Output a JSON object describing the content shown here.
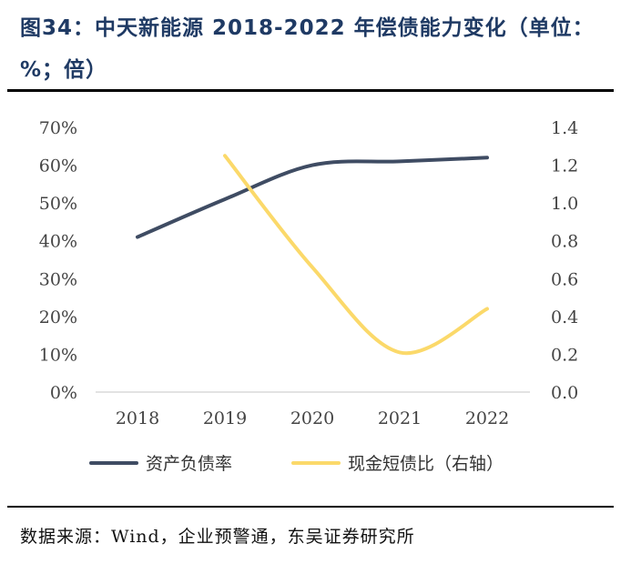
{
  "header": {
    "title": "图34：中天新能源 2018-2022 年偿债能力变化（单位：%；倍）"
  },
  "footer": {
    "source_label": "数据来源：",
    "source_value": "Wind，企业预警通，东吴证券研究所"
  },
  "colors": {
    "debt_ratio": "#3f4c63",
    "cash_ratio": "#fbd96a",
    "title": "#1f3a64"
  },
  "chart_data": {
    "type": "line",
    "title": "中天新能源 2018-2022 年偿债能力变化（单位：%；倍）",
    "categories": [
      "2018",
      "2019",
      "2020",
      "2021",
      "2022"
    ],
    "left_axis": {
      "ylim": [
        0,
        70
      ],
      "ticks": [
        0,
        10,
        20,
        30,
        40,
        50,
        60,
        70
      ],
      "tick_labels": [
        "0%",
        "10%",
        "20%",
        "30%",
        "40%",
        "50%",
        "60%",
        "70%"
      ]
    },
    "right_axis": {
      "ylim": [
        0,
        1.4
      ],
      "ticks": [
        0,
        0.2,
        0.4,
        0.6,
        0.8,
        1.0,
        1.2,
        1.4
      ],
      "tick_labels": [
        "0.0",
        "0.2",
        "0.4",
        "0.6",
        "0.8",
        "1.0",
        "1.2",
        "1.4"
      ]
    },
    "series": [
      {
        "name": "资产负债率",
        "axis": "left",
        "values": [
          41,
          51,
          60,
          61,
          62
        ]
      },
      {
        "name": "现金短债比（右轴）",
        "axis": "right",
        "values": [
          null,
          1.25,
          0.66,
          0.21,
          0.44
        ]
      }
    ],
    "legend_position": "bottom",
    "grid": false
  }
}
